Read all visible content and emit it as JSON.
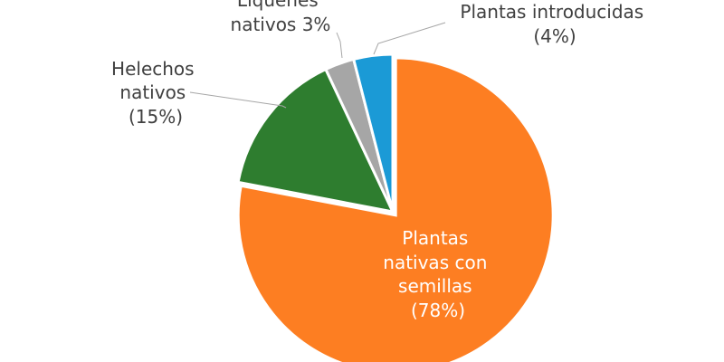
{
  "chart_data": {
    "type": "pie",
    "title": "",
    "categories": [
      "Plantas nativas con semillas",
      "Helechos nativos",
      "Líquenes nativos",
      "Plantas introducidas"
    ],
    "values": [
      78,
      15,
      3,
      4
    ],
    "colors": [
      "#fd7e22",
      "#2e7d2f",
      "#a6a6a6",
      "#1b9ad6"
    ],
    "labels": [
      {
        "lines": [
          "Plantas",
          "nativas con",
          "semillas",
          "(78%)"
        ]
      },
      {
        "lines": [
          "Helechos",
          "nativos",
          "(15%)"
        ]
      },
      {
        "lines": [
          "Líquenes",
          "nativos 3%"
        ]
      },
      {
        "lines": [
          "Plantas introducidas",
          "(4%)"
        ]
      }
    ],
    "legend": "none",
    "start_angle_deg": 0,
    "direction": "clockwise"
  }
}
